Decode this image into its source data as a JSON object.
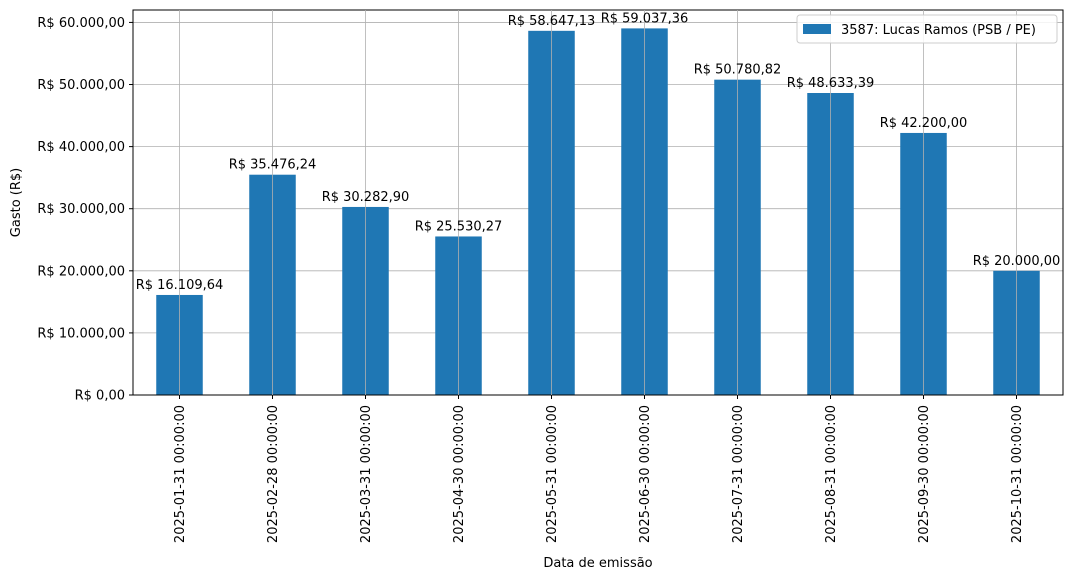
{
  "chart_data": {
    "type": "bar",
    "title": "",
    "xlabel": "Data de emissão",
    "ylabel": "Gasto (R$)",
    "ylim": [
      0,
      62000
    ],
    "yticks": [
      0,
      10000,
      20000,
      30000,
      40000,
      50000,
      60000
    ],
    "ytick_labels": [
      "R$ 0,00",
      "R$ 10.000,00",
      "R$ 20.000,00",
      "R$ 30.000,00",
      "R$ 40.000,00",
      "R$ 50.000,00",
      "R$ 60.000,00"
    ],
    "grid": true,
    "legend_position": "top-right",
    "categories": [
      "2025-01-31 00:00:00",
      "2025-02-28 00:00:00",
      "2025-03-31 00:00:00",
      "2025-04-30 00:00:00",
      "2025-05-31 00:00:00",
      "2025-06-30 00:00:00",
      "2025-07-31 00:00:00",
      "2025-08-31 00:00:00",
      "2025-09-30 00:00:00",
      "2025-10-31 00:00:00"
    ],
    "series": [
      {
        "name": "3587: Lucas Ramos (PSB / PE)",
        "color": "#1f77b4",
        "values": [
          16109.64,
          35476.24,
          30282.9,
          25530.27,
          58647.13,
          59037.36,
          50780.82,
          48633.39,
          42200.0,
          20000.0
        ],
        "data_labels": [
          "R$ 16.109,64",
          "R$ 35.476,24",
          "R$ 30.282,90",
          "R$ 25.530,27",
          "R$ 58.647,13",
          "R$ 59.037,36",
          "R$ 50.780,82",
          "R$ 48.633,39",
          "R$ 42.200,00",
          "R$ 20.000,00"
        ]
      }
    ]
  }
}
